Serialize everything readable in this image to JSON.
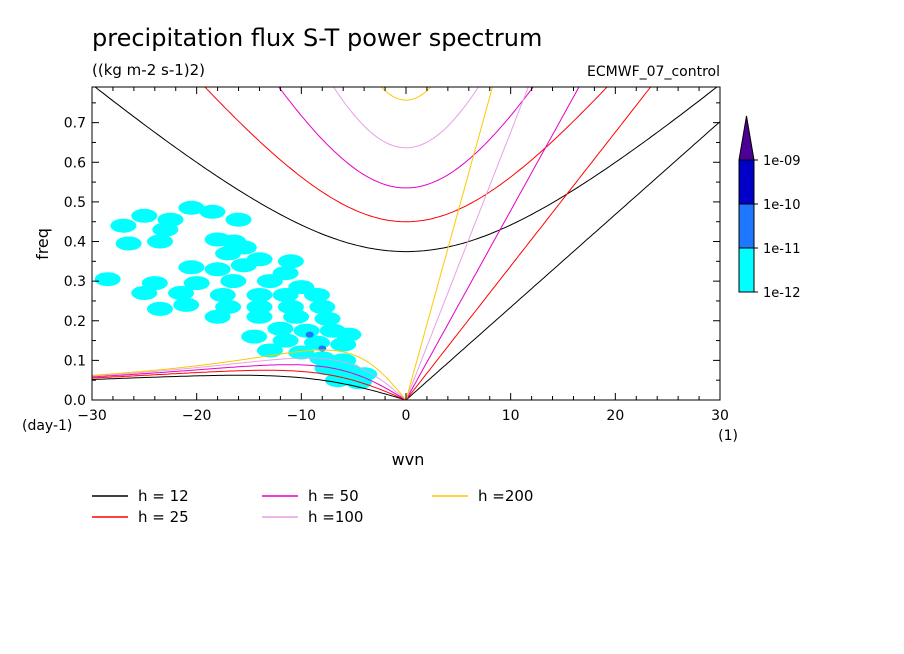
{
  "chart_data": {
    "type": "line",
    "title": "precipitation flux S-T power spectrum",
    "subtitle": "((kg m-2 s-1)2)",
    "experiment": "ECMWF_07_control",
    "xlabel": "wvn",
    "ylabel": "freq",
    "x_unit": "(1)",
    "y_unit": "(day-1)",
    "xlim": [
      -30,
      30
    ],
    "ylim": [
      0,
      0.79
    ],
    "x_ticks": [
      "-30",
      "-20",
      "-10",
      "0",
      "10",
      "20",
      "30"
    ],
    "y_ticks": [
      "0.0",
      "0.1",
      "0.2",
      "0.3",
      "0.4",
      "0.5",
      "0.6",
      "0.7"
    ],
    "series": [
      {
        "name": "h = 12",
        "equivalent_depth": 12,
        "color": "#000000"
      },
      {
        "name": "h = 25",
        "equivalent_depth": 25,
        "color": "#ff0000"
      },
      {
        "name": "h = 50",
        "equivalent_depth": 50,
        "color": "#e600c8"
      },
      {
        "name": "h =100",
        "equivalent_depth": 100,
        "color": "#e6a0e6"
      },
      {
        "name": "h =200",
        "equivalent_depth": 200,
        "color": "#ffc800"
      }
    ],
    "colorbar": {
      "labels": [
        "1e-12",
        "1e-11",
        "1e-10",
        "1e-09"
      ],
      "colors": [
        "#00ffff",
        "#1e78ff",
        "#0000c8",
        "#4b0096"
      ]
    },
    "spectrum_regions": [
      {
        "x": -20.5,
        "y": 0.485,
        "level": 0
      },
      {
        "x": -18.5,
        "y": 0.475,
        "level": 0
      },
      {
        "x": -25,
        "y": 0.465,
        "level": 0
      },
      {
        "x": -22.5,
        "y": 0.455,
        "level": 0
      },
      {
        "x": -23,
        "y": 0.43,
        "level": 0
      },
      {
        "x": -27,
        "y": 0.44,
        "level": 0
      },
      {
        "x": -16,
        "y": 0.455,
        "level": 0
      },
      {
        "x": -26.5,
        "y": 0.395,
        "level": 0
      },
      {
        "x": -23.5,
        "y": 0.4,
        "level": 0
      },
      {
        "x": -18,
        "y": 0.405,
        "level": 0
      },
      {
        "x": -16.5,
        "y": 0.4,
        "level": 0
      },
      {
        "x": -15.5,
        "y": 0.385,
        "level": 0
      },
      {
        "x": -17,
        "y": 0.37,
        "level": 0
      },
      {
        "x": -14,
        "y": 0.355,
        "level": 0
      },
      {
        "x": -15.5,
        "y": 0.34,
        "level": 0
      },
      {
        "x": -11,
        "y": 0.35,
        "level": 0
      },
      {
        "x": -11.5,
        "y": 0.32,
        "level": 0
      },
      {
        "x": -20.5,
        "y": 0.335,
        "level": 0
      },
      {
        "x": -18,
        "y": 0.33,
        "level": 0
      },
      {
        "x": -28.5,
        "y": 0.305,
        "level": 0
      },
      {
        "x": -24,
        "y": 0.295,
        "level": 0
      },
      {
        "x": -20,
        "y": 0.295,
        "level": 0
      },
      {
        "x": -16.5,
        "y": 0.3,
        "level": 0
      },
      {
        "x": -13,
        "y": 0.3,
        "level": 0
      },
      {
        "x": -10,
        "y": 0.285,
        "level": 0
      },
      {
        "x": -25,
        "y": 0.27,
        "level": 0
      },
      {
        "x": -21.5,
        "y": 0.27,
        "level": 0
      },
      {
        "x": -17.5,
        "y": 0.265,
        "level": 0
      },
      {
        "x": -14,
        "y": 0.265,
        "level": 0
      },
      {
        "x": -11.5,
        "y": 0.265,
        "level": 0
      },
      {
        "x": -8.5,
        "y": 0.265,
        "level": 0
      },
      {
        "x": -21,
        "y": 0.24,
        "level": 0
      },
      {
        "x": -17,
        "y": 0.235,
        "level": 0
      },
      {
        "x": -14,
        "y": 0.235,
        "level": 0
      },
      {
        "x": -11,
        "y": 0.235,
        "level": 0
      },
      {
        "x": -8,
        "y": 0.235,
        "level": 0
      },
      {
        "x": -23.5,
        "y": 0.23,
        "level": 0
      },
      {
        "x": -18,
        "y": 0.21,
        "level": 0
      },
      {
        "x": -14,
        "y": 0.21,
        "level": 0
      },
      {
        "x": -10.5,
        "y": 0.21,
        "level": 0
      },
      {
        "x": -7.5,
        "y": 0.205,
        "level": 0
      },
      {
        "x": -12,
        "y": 0.18,
        "level": 0
      },
      {
        "x": -9.5,
        "y": 0.175,
        "level": 0
      },
      {
        "x": -7,
        "y": 0.175,
        "level": 0
      },
      {
        "x": -5.5,
        "y": 0.165,
        "level": 0
      },
      {
        "x": -14.5,
        "y": 0.16,
        "level": 0
      },
      {
        "x": -11.5,
        "y": 0.15,
        "level": 0
      },
      {
        "x": -8.5,
        "y": 0.145,
        "level": 0
      },
      {
        "x": -6,
        "y": 0.14,
        "level": 0
      },
      {
        "x": -13,
        "y": 0.125,
        "level": 0
      },
      {
        "x": -10,
        "y": 0.12,
        "level": 0
      },
      {
        "x": -8,
        "y": 0.105,
        "level": 0
      },
      {
        "x": -6,
        "y": 0.1,
        "level": 0
      },
      {
        "x": -7.5,
        "y": 0.08,
        "level": 0
      },
      {
        "x": -5.5,
        "y": 0.075,
        "level": 0
      },
      {
        "x": -4,
        "y": 0.065,
        "level": 0
      },
      {
        "x": -6.5,
        "y": 0.05,
        "level": 0
      },
      {
        "x": -4.5,
        "y": 0.045,
        "level": 0
      },
      {
        "x": -9.2,
        "y": 0.165,
        "level": 1
      },
      {
        "x": -8,
        "y": 0.13,
        "level": 1
      }
    ]
  }
}
